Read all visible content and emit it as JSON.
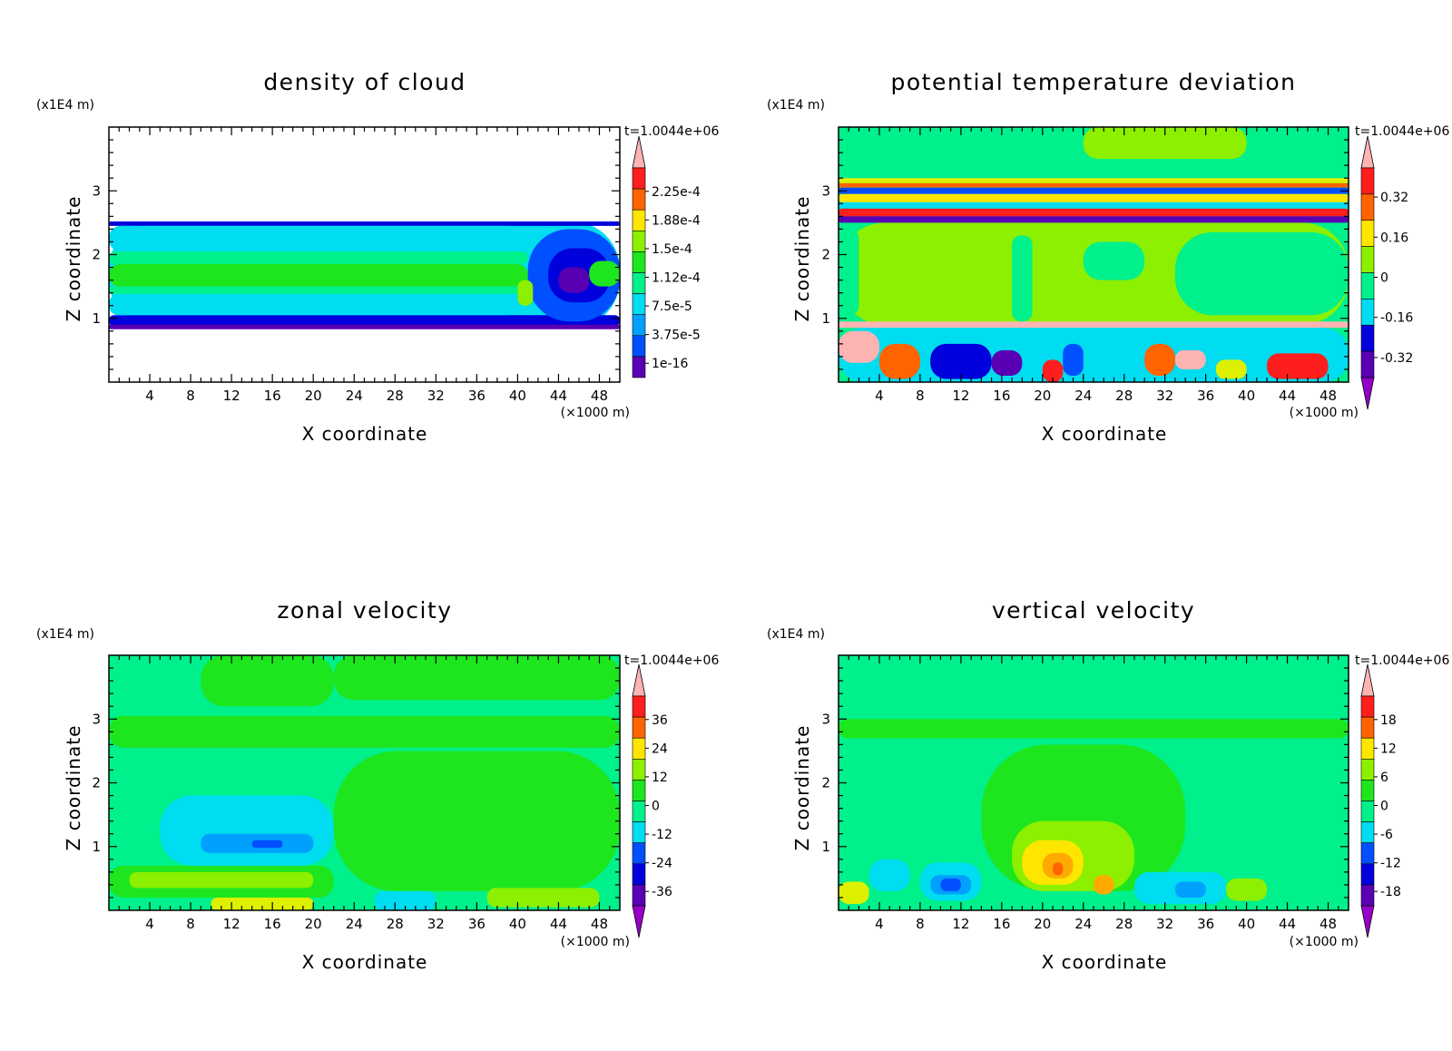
{
  "colors": {
    "bg": "#00f08c",
    "palette": [
      "#9600c8",
      "#5a00b4",
      "#0000dc",
      "#0050ff",
      "#00a0ff",
      "#00dcf0",
      "#00f08c",
      "#1ee61e",
      "#8cf000",
      "#dcf000",
      "#ffe600",
      "#ffaa00",
      "#ff6400",
      "#ff1e1e",
      "#ffb4b4"
    ]
  },
  "chart_data": [
    {
      "type": "heatmap",
      "title": "density of cloud",
      "xlabel": "X coordinate",
      "ylabel": "Z coordinate",
      "x_unit": "(×1000 m)",
      "y_unit": "(x1E4 m)",
      "time_label": "t=1.0044e+06",
      "xlim": [
        0,
        50
      ],
      "ylim": [
        0,
        4
      ],
      "xticks": [
        4,
        8,
        12,
        16,
        20,
        24,
        28,
        32,
        36,
        40,
        44,
        48
      ],
      "yticks": [
        1,
        2,
        3
      ],
      "colorbar_labels": [
        "2.25e-4",
        "1.88e-4",
        "1.5e-4",
        "1.12e-4",
        "7.5e-5",
        "3.75e-5",
        "1e-16"
      ],
      "colorbar_levels": 8,
      "colorbar_arrows": "top",
      "layers": [
        {
          "x": [
            0,
            50
          ],
          "y": [
            0.85,
            2.52
          ],
          "c": 5
        },
        {
          "x": [
            0,
            50
          ],
          "y": [
            0.88,
            1.05
          ],
          "c": 2
        },
        {
          "x": [
            0,
            50
          ],
          "y": [
            0.83,
            0.9
          ],
          "c": 1
        },
        {
          "x": [
            0,
            50
          ],
          "y": [
            2.45,
            2.52
          ],
          "c": 2
        },
        {
          "x": [
            0,
            40
          ],
          "y": [
            1.05,
            1.38
          ],
          "c": 5
        },
        {
          "x": [
            0,
            41
          ],
          "y": [
            1.38,
            1.5
          ],
          "c": 6
        },
        {
          "x": [
            0,
            41
          ],
          "y": [
            1.5,
            1.85
          ],
          "c": 7
        },
        {
          "x": [
            0,
            41
          ],
          "y": [
            1.85,
            2.05
          ],
          "c": 6
        },
        {
          "x": [
            0,
            40
          ],
          "y": [
            2.05,
            2.45
          ],
          "c": 5
        },
        {
          "x": [
            41,
            50
          ],
          "y": [
            0.95,
            2.4
          ],
          "c": 3
        },
        {
          "x": [
            43,
            49
          ],
          "y": [
            1.25,
            2.1
          ],
          "c": 2
        },
        {
          "x": [
            44,
            47
          ],
          "y": [
            1.4,
            1.8
          ],
          "c": 1
        },
        {
          "x": [
            47,
            50
          ],
          "y": [
            1.5,
            1.9
          ],
          "c": 7
        },
        {
          "x": [
            40,
            41.5
          ],
          "y": [
            1.2,
            1.6
          ],
          "c": 8
        }
      ]
    },
    {
      "type": "heatmap",
      "title": "potential temperature deviation",
      "xlabel": "X coordinate",
      "ylabel": "Z coordinate",
      "x_unit": "(×1000 m)",
      "y_unit": "(x1E4 m)",
      "time_label": "t=1.0044e+06",
      "xlim": [
        0,
        50
      ],
      "ylim": [
        0,
        4
      ],
      "xticks": [
        4,
        8,
        12,
        16,
        20,
        24,
        28,
        32,
        36,
        40,
        44,
        48
      ],
      "yticks": [
        1,
        2,
        3
      ],
      "colorbar_labels": [
        "0.32",
        "0.16",
        "0",
        "-0.16",
        "-0.32"
      ],
      "colorbar_levels": 6,
      "colorbar_arrows": "both",
      "layers": [
        {
          "x": [
            0,
            50
          ],
          "y": [
            0.9,
            2.5
          ],
          "c": 8
        },
        {
          "x": [
            0,
            2
          ],
          "y": [
            1.05,
            2.4
          ],
          "c": 6
        },
        {
          "x": [
            17,
            19
          ],
          "y": [
            0.95,
            2.3
          ],
          "c": 6
        },
        {
          "x": [
            33,
            50
          ],
          "y": [
            1.05,
            2.35
          ],
          "c": 6
        },
        {
          "x": [
            24,
            30
          ],
          "y": [
            1.6,
            2.2
          ],
          "c": 6
        },
        {
          "x": [
            0,
            50
          ],
          "y": [
            3.05,
            4
          ],
          "c": 6
        },
        {
          "x": [
            24,
            40
          ],
          "y": [
            3.5,
            4
          ],
          "c": 8
        },
        {
          "x": [
            0,
            50
          ],
          "y": [
            3.12,
            3.2
          ],
          "c": 9
        },
        {
          "x": [
            0,
            50
          ],
          "y": [
            3.05,
            3.12
          ],
          "c": 12
        },
        {
          "x": [
            0,
            50
          ],
          "y": [
            2.95,
            3.05
          ],
          "c": 3
        },
        {
          "x": [
            0,
            50
          ],
          "y": [
            2.82,
            2.95
          ],
          "c": 10
        },
        {
          "x": [
            0,
            50
          ],
          "y": [
            2.72,
            2.82
          ],
          "c": 5
        },
        {
          "x": [
            0,
            50
          ],
          "y": [
            2.6,
            2.72
          ],
          "c": 13
        },
        {
          "x": [
            0,
            50
          ],
          "y": [
            2.5,
            2.6
          ],
          "c": 1
        },
        {
          "x": [
            0,
            50
          ],
          "y": [
            0.85,
            0.95
          ],
          "c": 14
        },
        {
          "x": [
            0,
            50
          ],
          "y": [
            0,
            0.85
          ],
          "c": 5
        },
        {
          "x": [
            0,
            4
          ],
          "y": [
            0.3,
            0.8
          ],
          "c": 14
        },
        {
          "x": [
            4,
            8
          ],
          "y": [
            0.05,
            0.6
          ],
          "c": 12
        },
        {
          "x": [
            9,
            15
          ],
          "y": [
            0.05,
            0.6
          ],
          "c": 2
        },
        {
          "x": [
            15,
            18
          ],
          "y": [
            0.1,
            0.5
          ],
          "c": 1
        },
        {
          "x": [
            20,
            22
          ],
          "y": [
            0,
            0.35
          ],
          "c": 13
        },
        {
          "x": [
            22,
            24
          ],
          "y": [
            0.1,
            0.6
          ],
          "c": 3
        },
        {
          "x": [
            30,
            33
          ],
          "y": [
            0.1,
            0.6
          ],
          "c": 12
        },
        {
          "x": [
            33,
            36
          ],
          "y": [
            0.2,
            0.5
          ],
          "c": 14
        },
        {
          "x": [
            37,
            40
          ],
          "y": [
            0.05,
            0.35
          ],
          "c": 9
        },
        {
          "x": [
            42,
            48
          ],
          "y": [
            0.05,
            0.45
          ],
          "c": 13
        }
      ]
    },
    {
      "type": "heatmap",
      "title": "zonal velocity",
      "xlabel": "X coordinate",
      "ylabel": "Z coordinate",
      "x_unit": "(×1000 m)",
      "y_unit": "(x1E4 m)",
      "time_label": "t=1.0044e+06",
      "xlim": [
        0,
        50
      ],
      "ylim": [
        0,
        4
      ],
      "xticks": [
        4,
        8,
        12,
        16,
        20,
        24,
        28,
        32,
        36,
        40,
        44,
        48
      ],
      "yticks": [
        1,
        2,
        3
      ],
      "colorbar_labels": [
        "36",
        "24",
        "12",
        "0",
        "-12",
        "-24",
        "-36"
      ],
      "colorbar_levels": 8,
      "colorbar_arrows": "both",
      "layers": [
        {
          "x": [
            9,
            22
          ],
          "y": [
            3.2,
            4
          ],
          "c": 7
        },
        {
          "x": [
            22,
            50
          ],
          "y": [
            3.3,
            4
          ],
          "c": 7
        },
        {
          "x": [
            0,
            50
          ],
          "y": [
            2.55,
            3.05
          ],
          "c": 7
        },
        {
          "x": [
            22,
            50
          ],
          "y": [
            0.3,
            2.5
          ],
          "c": 7
        },
        {
          "x": [
            0,
            22
          ],
          "y": [
            0.2,
            0.7
          ],
          "c": 7
        },
        {
          "x": [
            5,
            22
          ],
          "y": [
            0.7,
            1.8
          ],
          "c": 5
        },
        {
          "x": [
            9,
            20
          ],
          "y": [
            0.9,
            1.2
          ],
          "c": 4
        },
        {
          "x": [
            14,
            17
          ],
          "y": [
            0.98,
            1.1
          ],
          "c": 3
        },
        {
          "x": [
            2,
            20
          ],
          "y": [
            0.35,
            0.6
          ],
          "c": 8
        },
        {
          "x": [
            10,
            20
          ],
          "y": [
            0,
            0.2
          ],
          "c": 9
        },
        {
          "x": [
            26,
            32
          ],
          "y": [
            0,
            0.3
          ],
          "c": 5
        },
        {
          "x": [
            37,
            48
          ],
          "y": [
            0.05,
            0.35
          ],
          "c": 8
        }
      ]
    },
    {
      "type": "heatmap",
      "title": "vertical velocity",
      "xlabel": "X coordinate",
      "ylabel": "Z coordinate",
      "x_unit": "(×1000 m)",
      "y_unit": "(x1E4 m)",
      "time_label": "t=1.0044e+06",
      "xlim": [
        0,
        50
      ],
      "ylim": [
        0,
        4
      ],
      "xticks": [
        4,
        8,
        12,
        16,
        20,
        24,
        28,
        32,
        36,
        40,
        44,
        48
      ],
      "yticks": [
        1,
        2,
        3
      ],
      "colorbar_labels": [
        "18",
        "12",
        "6",
        "0",
        "-6",
        "-12",
        "-18"
      ],
      "colorbar_levels": 8,
      "colorbar_arrows": "both",
      "layers": [
        {
          "x": [
            0,
            50
          ],
          "y": [
            2.7,
            3.0
          ],
          "c": 7
        },
        {
          "x": [
            14,
            34
          ],
          "y": [
            0.3,
            2.6
          ],
          "c": 7
        },
        {
          "x": [
            17,
            29
          ],
          "y": [
            0.3,
            1.4
          ],
          "c": 8
        },
        {
          "x": [
            18,
            24
          ],
          "y": [
            0.4,
            1.1
          ],
          "c": 10
        },
        {
          "x": [
            20,
            23
          ],
          "y": [
            0.5,
            0.9
          ],
          "c": 11
        },
        {
          "x": [
            21,
            22
          ],
          "y": [
            0.55,
            0.75
          ],
          "c": 12
        },
        {
          "x": [
            25,
            27
          ],
          "y": [
            0.25,
            0.55
          ],
          "c": 11
        },
        {
          "x": [
            8,
            14
          ],
          "y": [
            0.15,
            0.75
          ],
          "c": 5
        },
        {
          "x": [
            9,
            13
          ],
          "y": [
            0.25,
            0.55
          ],
          "c": 4
        },
        {
          "x": [
            10,
            12
          ],
          "y": [
            0.3,
            0.5
          ],
          "c": 3
        },
        {
          "x": [
            29,
            38
          ],
          "y": [
            0.1,
            0.6
          ],
          "c": 5
        },
        {
          "x": [
            33,
            36
          ],
          "y": [
            0.2,
            0.45
          ],
          "c": 4
        },
        {
          "x": [
            0,
            3
          ],
          "y": [
            0.1,
            0.45
          ],
          "c": 9
        },
        {
          "x": [
            38,
            42
          ],
          "y": [
            0.15,
            0.5
          ],
          "c": 8
        },
        {
          "x": [
            3,
            7
          ],
          "y": [
            0.3,
            0.8
          ],
          "c": 5
        }
      ]
    }
  ]
}
